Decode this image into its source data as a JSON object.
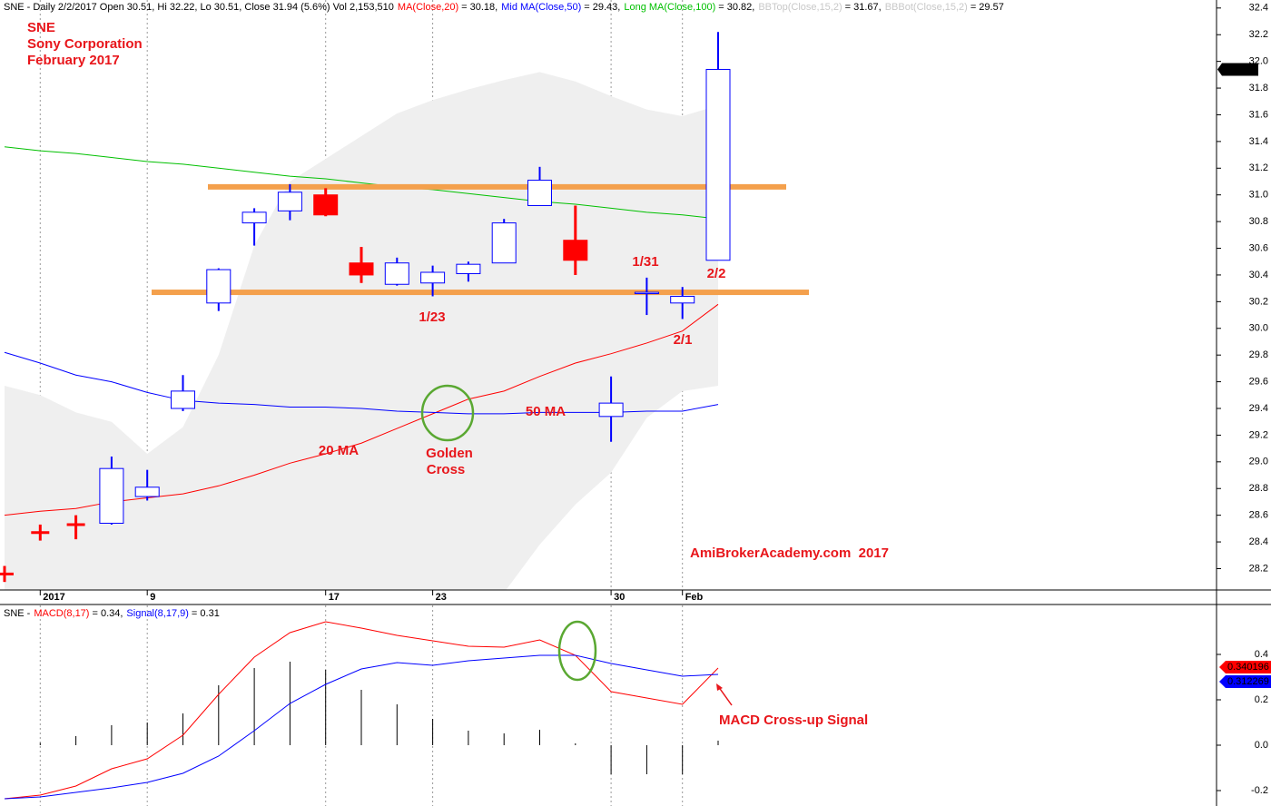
{
  "chart_data": [
    {
      "type": "candlestick",
      "header": "SNE - Daily 2/2/2017 Open 30.51, Hi 32.22, Lo 30.51, Close 31.94 (5.6%) Vol 2,153,510",
      "categories": [
        null,
        "2017",
        null,
        null,
        "9",
        null,
        null,
        null,
        null,
        "17",
        null,
        null,
        "23",
        null,
        null,
        null,
        null,
        "30",
        null,
        "Feb",
        null
      ],
      "candles": {
        "open": [
          28.16,
          28.47,
          28.53,
          28.54,
          28.74,
          29.4,
          30.19,
          30.79,
          30.88,
          31.0,
          30.49,
          30.33,
          30.34,
          30.41,
          30.49,
          30.92,
          30.66,
          29.34,
          30.26,
          30.19,
          30.51
        ],
        "high": [
          28.22,
          28.53,
          28.6,
          29.04,
          28.94,
          29.65,
          30.45,
          30.9,
          31.08,
          31.05,
          30.61,
          30.53,
          30.47,
          30.5,
          30.82,
          31.21,
          30.92,
          29.64,
          30.38,
          30.31,
          32.22
        ],
        "low": [
          28.1,
          28.41,
          28.42,
          28.53,
          28.71,
          29.38,
          30.13,
          30.62,
          30.81,
          30.84,
          30.34,
          30.32,
          30.24,
          30.35,
          30.49,
          30.92,
          30.4,
          29.15,
          30.1,
          30.07,
          30.51
        ],
        "close": [
          28.16,
          28.47,
          28.53,
          28.95,
          28.81,
          29.53,
          30.44,
          30.87,
          31.02,
          30.85,
          30.4,
          30.49,
          30.42,
          30.48,
          30.79,
          31.11,
          30.51,
          29.44,
          30.27,
          30.24,
          31.94
        ],
        "up_color": "#0000ff",
        "down_color": "#ff0000"
      },
      "series": [
        {
          "name": "MA(Close,20)",
          "label": "= 30.18,",
          "color": "#ff0000",
          "style": "line",
          "values": [
            28.6,
            28.63,
            28.65,
            28.7,
            28.73,
            28.76,
            28.82,
            28.9,
            28.99,
            29.06,
            29.14,
            29.25,
            29.36,
            29.47,
            29.53,
            29.64,
            29.74,
            29.81,
            29.89,
            29.98,
            30.18
          ]
        },
        {
          "name": "Mid MA(Close,50)",
          "label": "= 29.43,",
          "color": "#0000ff",
          "style": "line",
          "values": [
            29.82,
            29.74,
            29.65,
            29.6,
            29.52,
            29.46,
            29.44,
            29.43,
            29.41,
            29.41,
            29.4,
            29.38,
            29.37,
            29.36,
            29.36,
            29.37,
            29.37,
            29.37,
            29.38,
            29.38,
            29.43
          ]
        },
        {
          "name": "Long MA(Close,100)",
          "label": "= 30.82,",
          "color": "#00c000",
          "style": "line",
          "values": [
            31.36,
            31.33,
            31.31,
            31.28,
            31.25,
            31.23,
            31.2,
            31.17,
            31.14,
            31.12,
            31.09,
            31.06,
            31.04,
            31.01,
            30.98,
            30.95,
            30.93,
            30.9,
            30.87,
            30.85,
            30.82
          ]
        },
        {
          "name": "BBTop(Close,15,2)",
          "label": "= 31.67,",
          "color": "#c8c8c8",
          "style": "band",
          "values": [
            29.57,
            29.5,
            29.37,
            29.3,
            29.06,
            29.26,
            29.8,
            30.62,
            31.1,
            31.27,
            31.44,
            31.61,
            31.71,
            31.79,
            31.86,
            31.92,
            31.85,
            31.74,
            31.64,
            31.59,
            31.67
          ]
        },
        {
          "name": "BBBot(Close,15,2)",
          "label": "= 29.57",
          "color": "#c8c8c8",
          "style": "band",
          "values": [
            27.9,
            27.9,
            27.9,
            27.9,
            27.9,
            27.9,
            27.9,
            27.9,
            27.9,
            27.9,
            27.9,
            27.9,
            27.9,
            27.9,
            28.02,
            28.38,
            28.68,
            28.92,
            29.33,
            29.53,
            29.57
          ]
        }
      ],
      "band_fill": "#efefef",
      "levels": [
        31.06,
        30.27
      ],
      "level_color": "#f4a04c",
      "ylim": [
        28.04,
        32.46
      ],
      "yticks": [
        28.2,
        28.4,
        28.6,
        28.8,
        {
          "value": 29,
          "label": "29.0"
        },
        29.2,
        29.4,
        29.6,
        29.8,
        {
          "value": 30,
          "label": "30.0"
        },
        30.2,
        30.4,
        30.6,
        30.8,
        {
          "value": 31,
          "label": "31.0"
        },
        31.2,
        31.4,
        31.6,
        31.8,
        {
          "value": 32,
          "label": "32.0"
        },
        32.2,
        32.4
      ],
      "grid": true,
      "annotations": [
        "SNE",
        "Sony Corporation",
        "February 2017",
        "1/31",
        "2/2",
        "1/23",
        "2/1",
        "20 MA",
        "Golden",
        "Cross",
        "50 MA",
        "AmiBrokerAcademy.com  2017",
        "MACD Cross-up Signal"
      ]
    },
    {
      "type": "line",
      "header": "SNE -",
      "series": [
        {
          "name": "MACD(8,17)",
          "label": "= 0.34,",
          "color": "#ff0000",
          "style": "line",
          "last_label": "0.340196",
          "values": [
            -0.236,
            -0.22,
            -0.18,
            -0.104,
            -0.06,
            0.044,
            0.224,
            0.388,
            0.496,
            0.544,
            0.516,
            0.484,
            0.46,
            0.436,
            0.432,
            0.464,
            0.396,
            0.236,
            0.208,
            0.18,
            0.34
          ]
        },
        {
          "name": "Signal(8,17,9)",
          "label": "= 0.31",
          "color": "#0000ff",
          "style": "line",
          "last_label": "0.312269",
          "values": [
            -0.236,
            -0.228,
            -0.208,
            -0.188,
            -0.164,
            -0.124,
            -0.048,
            0.064,
            0.184,
            0.268,
            0.336,
            0.364,
            0.352,
            0.372,
            0.384,
            0.396,
            0.396,
            0.36,
            0.332,
            0.304,
            0.312
          ]
        },
        {
          "color": "#000000",
          "style": "bar",
          "values": [
            0,
            0.01,
            0.04,
            0.088,
            0.1,
            0.14,
            0.264,
            0.34,
            0.368,
            0.332,
            0.244,
            0.18,
            0.116,
            0.064,
            0.052,
            0.068,
            0.008,
            -0.128,
            -0.128,
            -0.128,
            0.02
          ]
        }
      ],
      "ylim": [
        -0.268,
        0.616
      ],
      "yticks": [
        0.4,
        0.2,
        {
          "value": 0,
          "label": "0.0"
        },
        -0.2
      ],
      "grid": true
    }
  ]
}
